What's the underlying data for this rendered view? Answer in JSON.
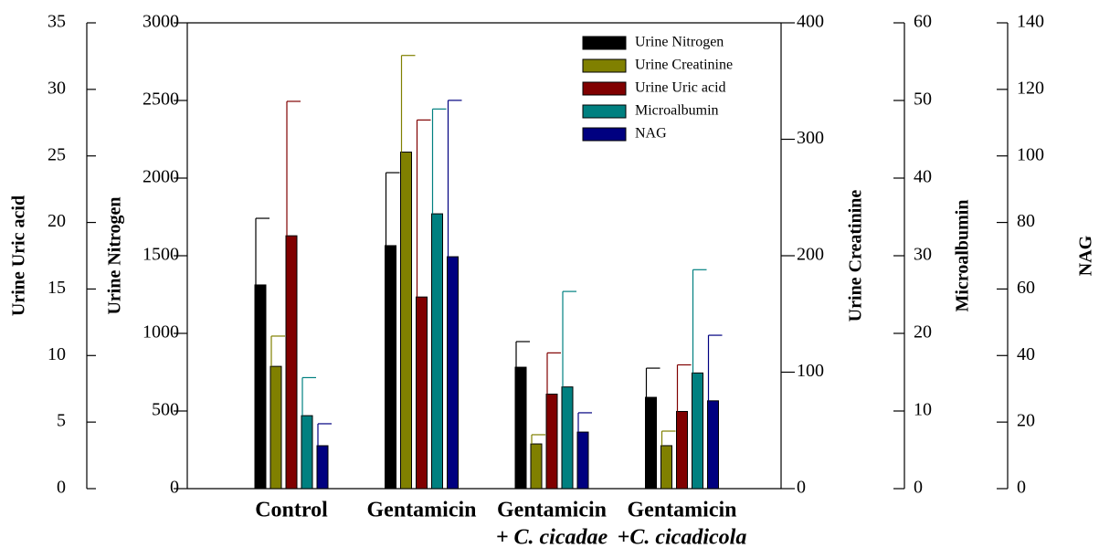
{
  "chart_data": {
    "type": "bar",
    "categories": [
      [
        "Control"
      ],
      [
        "Gentamicin"
      ],
      [
        "Gentamicin",
        "+ C. cicadae"
      ],
      [
        "Gentamicin",
        "+C. cicadicola"
      ]
    ],
    "axes": [
      {
        "label": "Urine Uric acid",
        "lim": [
          0,
          35
        ],
        "ticks": [
          0,
          5,
          10,
          15,
          20,
          25,
          30,
          35
        ]
      },
      {
        "label": "Urine Nitrogen",
        "lim": [
          0,
          3000
        ],
        "ticks": [
          0,
          500,
          1000,
          1500,
          2000,
          2500,
          3000
        ]
      },
      {
        "label": "Urine Creatinine",
        "lim": [
          0,
          400
        ],
        "ticks": [
          0,
          100,
          200,
          300,
          400
        ]
      },
      {
        "label": "Microalbumin",
        "lim": [
          0,
          60
        ],
        "ticks": [
          0,
          10,
          20,
          30,
          40,
          50,
          60
        ]
      },
      {
        "label": "NAG",
        "lim": [
          0,
          140
        ],
        "ticks": [
          0,
          20,
          40,
          60,
          80,
          100,
          120,
          140
        ]
      }
    ],
    "series": [
      {
        "name": "Urine Nitrogen",
        "color": "#000000",
        "axis": 1,
        "values": [
          1312,
          1565,
          782,
          588
        ],
        "errors": [
          429,
          470,
          165,
          188
        ]
      },
      {
        "name": "Urine Creatinine",
        "color": "#808000",
        "axis": 2,
        "values": [
          105,
          289,
          38.4,
          36.9
        ],
        "errors": [
          26,
          83,
          7.9,
          12.5
        ]
      },
      {
        "name": "Urine Uric acid",
        "color": "#800000",
        "axis": 0,
        "values": [
          19.0,
          14.4,
          7.1,
          5.8
        ],
        "errors": [
          10.1,
          13.3,
          3.1,
          3.5
        ]
      },
      {
        "name": "Microalbumin",
        "color": "#008080",
        "axis": 3,
        "values": [
          9.4,
          35.4,
          13.1,
          14.9
        ],
        "errors": [
          4.9,
          13.5,
          12.3,
          13.3
        ]
      },
      {
        "name": "NAG",
        "color": "#000080",
        "axis": 4,
        "values": [
          12.9,
          69.7,
          17.0,
          26.4
        ],
        "errors": [
          6.6,
          47,
          5.8,
          19.7
        ]
      }
    ],
    "legend": "upper right"
  }
}
